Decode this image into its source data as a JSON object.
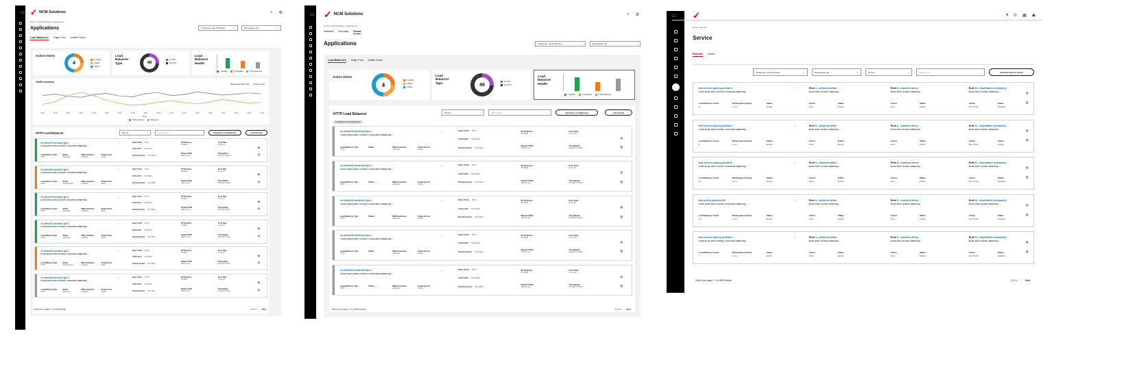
{
  "app": {
    "brand": "NCM Solutions",
    "accent": "#e60000",
    "link_color": "#0077b4",
    "topbar_icons": [
      "search-icon",
      "settings-icon"
    ],
    "screen3_topbar_icons": [
      "notification-icon",
      "phone-icon",
      "grid-icon",
      "user-icon"
    ]
  },
  "screen1": {
    "breadcrumb": "Home / NCM Solutions / Applications",
    "title": "Applications",
    "timeframe": "Timeframe: Last 5 Minutes",
    "namespace": "Namespace: All",
    "tabs": [
      "Load Balancers",
      "Origin Pool",
      "Health Check"
    ],
    "active_alerts": {
      "title": "Active Alerts",
      "count": "4",
      "legend": [
        {
          "label": "1 Critical",
          "color": "#f47b20"
        },
        {
          "label": "1 Major",
          "color": "#f6a343"
        },
        {
          "label": "2 Minor",
          "color": "#1b9ad6"
        }
      ]
    },
    "lb_type": {
      "title": "Load Balancer Type",
      "count": "46",
      "legend": [
        {
          "label": "12 TCP",
          "color": "#a64ac9"
        },
        {
          "label": "34 HTTP",
          "color": "#333333"
        }
      ]
    },
    "lb_health": {
      "title": "Load Balancer Health",
      "legend": [
        {
          "label": "7 Healthy",
          "color": "#1aa34a"
        },
        {
          "label": "3 Unhealthy",
          "color": "#f47b20"
        },
        {
          "label": "4 Not Deployed",
          "color": "#999999"
        }
      ],
      "bars": [
        0.75,
        0.55,
        0.45
      ]
    },
    "traffic": {
      "title": "Traffic overview",
      "stat1": "Data transfer total: 2.4K",
      "stat2": "Total req: 4.6K",
      "legend": [
        "Total requests",
        "Requests"
      ],
      "xlabel": "Time",
      "x_ticks": [
        "00:00",
        "01:00",
        "02:00",
        "03:00",
        "04:00",
        "05:00",
        "06:00",
        "07:00",
        "08:00",
        "09:00",
        "10:00",
        "11:00",
        "12:00",
        "13:00",
        "14:00",
        "15:00",
        "16:00",
        "17:00"
      ],
      "series_dark": [
        0.7,
        0.76,
        0.66,
        0.62,
        0.74,
        0.8,
        0.68,
        0.64,
        0.78,
        0.84,
        0.7,
        0.74,
        0.86,
        0.8,
        0.72,
        0.76,
        0.82,
        0.78
      ],
      "series_orange": [
        0.3,
        0.42,
        0.7,
        0.84,
        0.7,
        0.48,
        0.34,
        0.26,
        0.3,
        0.4,
        0.46,
        0.38,
        0.32,
        0.4,
        0.52,
        0.44,
        0.36,
        0.38
      ]
    },
    "http_lb": {
      "title": "HTTP Load Balancer",
      "sort": "Sort by",
      "search_placeholder": "Search here",
      "add_button": "Add New Load Balancer",
      "download": "Download",
      "rows": [
        {
          "name": "ce-demo02-westus2-lge-1",
          "status": "Deployed",
          "stripe": "#1aa34a"
        },
        {
          "name": "ce-demo02-westus2-lge-1",
          "status": "Not Deployed",
          "stripe": "#f47b20"
        },
        {
          "name": "ce-demo02-westus2-lge-1",
          "status": "Deployed",
          "stripe": "#1aa34a"
        },
        {
          "name": "ce-demo02-westus2-lge-1",
          "status": "Deployed",
          "stripe": "#1aa34a"
        },
        {
          "name": "ce-demo02-westus2-lge-1",
          "status": "Not Deployed",
          "stripe": "#f47b20"
        },
        {
          "name": "ce-demo02-westus2-lge-1",
          "status": "Deployed",
          "stripe": "#999999"
        }
      ],
      "pagination": "Show 5 per page  1 - 5 of 500 Results",
      "pages": "1  2  3  4",
      "next": "Next"
    }
  },
  "screen2": {
    "breadcrumb": "Home / NCM Solutions / Applications",
    "top_tabs": [
      "Network",
      "Security",
      "Cloud"
    ],
    "title": "Applications",
    "timeframe": "Timeframe: Last 5 Minutes",
    "namespace": "Namespace: All",
    "tabs": [
      "Load Balancers",
      "Origin Pool",
      "Health Check"
    ],
    "active_alerts": {
      "title": "Active Alerts",
      "count": "4",
      "legend": [
        {
          "label": "1 Critical",
          "color": "#f47b20"
        },
        {
          "label": "1 Major",
          "color": "#f6a343"
        },
        {
          "label": "2 Minor",
          "color": "#1b9ad6"
        }
      ]
    },
    "lb_type": {
      "title": "Load Balancer Type",
      "count": "46",
      "legend": [
        {
          "label": "12 TCP",
          "color": "#a64ac9"
        },
        {
          "label": "34 HTTP",
          "color": "#333333"
        }
      ]
    },
    "lb_health": {
      "title": "Load Balancer Health",
      "legend": [
        {
          "label": "7 Healthy",
          "color": "#1aa34a"
        },
        {
          "label": "3 Unhealthy",
          "color": "#f47b20"
        },
        {
          "label": "4 Not Deployed",
          "color": "#999999"
        }
      ],
      "bars": [
        0.85,
        0.55,
        0.75
      ]
    },
    "http_lb": {
      "title": "HTTP Load Balancer",
      "filter_chip": "Load Balancer: Not Deployed",
      "sort": "Sort by",
      "search_placeholder": "Search here",
      "add_button": "Add New Load Balancer",
      "download": "Download",
      "rows": [
        {
          "name": "ce-demo02-westus2-lge-1"
        },
        {
          "name": "ce-demo02-westus2-lge-1"
        },
        {
          "name": "ce-demo02-westus2-lge-1"
        },
        {
          "name": "ce-demo02-westus2-lge-1"
        },
        {
          "name": "ce-demo02-westus2-lge-1"
        }
      ],
      "pagination": "Show 5 per page  1 - 5 of 500 Results",
      "pages": "1  2  3  4",
      "next": "Next"
    }
  },
  "lb_row_labels": {
    "desc": "Lorem ipsum dolor sit amet, consectetur adipiscing ...",
    "type_k": "Load Balancer Type",
    "type_v": "HTTP",
    "status_k": "Status",
    "dns_k": "DNS Hostname",
    "dns_v": "localhost",
    "origin_k": "Origin Server",
    "origin_v": "Active",
    "open_ticket_k": "Open Ticket",
    "open_ticket_v": "16 P1",
    "active_alert_k": "Active Alert",
    "active_alert_v": "10 Critical",
    "security_k": "Security Events",
    "security_v": "10 Critical",
    "rtt_k": "RTT/Latency",
    "rtt_v": "26 Mbps",
    "request_k": "Request Rate",
    "request_v": "400 per sec",
    "error_k": "Error Rate",
    "error_v": "0 per sec",
    "throughput_k": "Throughput",
    "throughput_v": "64 kbps / 8 kbps"
  },
  "screen3": {
    "breadcrumb": "Home / Service",
    "title": "Service",
    "tabs": [
      "Policies",
      "Rules"
    ],
    "timeframe": "Timeframe: Last 5 Minutes",
    "namespace": "Namespace: All",
    "sort": "Sort by",
    "search_placeholder": "Search here",
    "add_button": "Add New Service Policy",
    "rows": [
      {
        "name": "test-service-policy-petstore",
        "lb_count": "22",
        "status": "Enable",
        "rule3_status": "Disabled"
      },
      {
        "name": "test-service-policy-petstore",
        "lb_count": "5",
        "status": "Enable",
        "rule3_status": "Enable"
      },
      {
        "name": "test-service-policy-petstore",
        "lb_count": "30",
        "status": "Enable",
        "rule3_status": "Disabled"
      },
      {
        "name": "test-policy-petstore33",
        "lb_count": "172",
        "status": "Enable",
        "rule3_status": "Disabled"
      },
      {
        "name": "test-service-policy-petstore",
        "lb_count": "5",
        "status": "Enable",
        "rule3_status": "Disabled"
      }
    ],
    "row_labels": {
      "desc": "Lorem ipsum dolor sit amet, consectetur adipiscing ...",
      "lb_count_k": "Load Balancer Count",
      "ns_k": "Namespace (Active)",
      "ns_v": "vs-ns",
      "status_k": "Status",
      "rule1": "Rule 1 - ",
      "rule1_name": "petstore-allow",
      "rule2": "Rule 2 - ",
      "rule2_name": "machine-deny",
      "rule3": "Rule 3 - ",
      "rule3_name": "cloudflame-nextpolicy",
      "rule_desc": "Ipsum dolor sit amet, adipiscing ...",
      "action_k": "Action",
      "action1": "Allow",
      "action2": "Deny",
      "action3": "Next Policy"
    },
    "pagination": "Show 5 per page  1 - 5 of 500 Results",
    "pages": "1  2  3  4",
    "next": "Next"
  }
}
